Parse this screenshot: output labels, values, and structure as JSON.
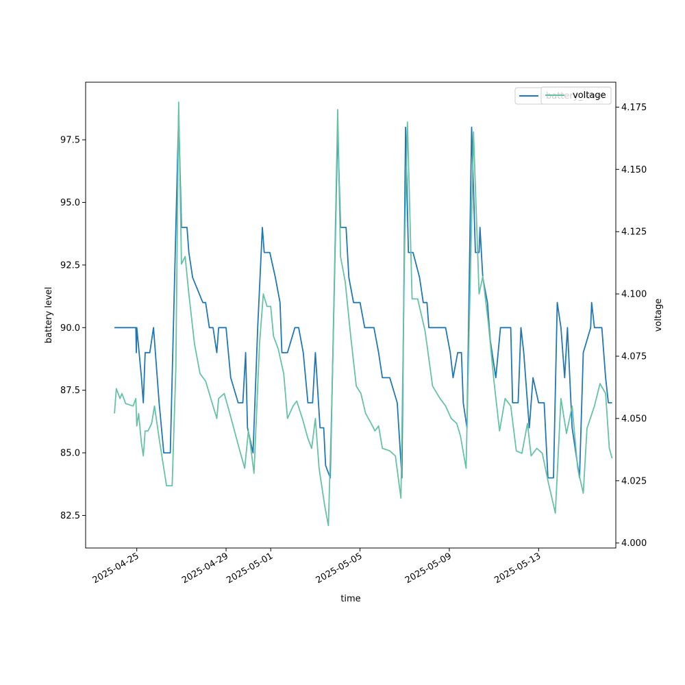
{
  "chart_data": {
    "type": "line",
    "xlabel": "time",
    "ylabel": "battery level",
    "y2label": "voltage",
    "legend_placement": "top-right",
    "grid": false,
    "xlim": [
      "2025-04-22T17:00",
      "2025-05-16T11:00"
    ],
    "ylim": [
      81.2,
      99.8
    ],
    "y2lim": [
      3.998,
      4.185
    ],
    "x_ticks": [
      "2025-04-25",
      "2025-04-29",
      "2025-05-01",
      "2025-05-05",
      "2025-05-09",
      "2025-05-13"
    ],
    "y_ticks": [
      "82.5",
      "85.0",
      "87.5",
      "90.0",
      "92.5",
      "95.0",
      "97.5"
    ],
    "y2_ticks": [
      "4.000",
      "4.025",
      "4.050",
      "4.075",
      "4.100",
      "4.125",
      "4.150",
      "4.175"
    ],
    "series": [
      {
        "name": "battery_level",
        "axis": "left",
        "color": "#1f77b4",
        "points": [
          [
            "2025-04-24T00:00",
            90
          ],
          [
            "2025-04-24T23:00",
            90
          ],
          [
            "2025-04-24T23:30",
            89
          ],
          [
            "2025-04-25T00:00",
            90
          ],
          [
            "2025-04-25T05:00",
            88
          ],
          [
            "2025-04-25T07:00",
            87
          ],
          [
            "2025-04-25T09:00",
            89
          ],
          [
            "2025-04-25T14:00",
            89
          ],
          [
            "2025-04-25T18:00",
            90
          ],
          [
            "2025-04-26T00:00",
            87
          ],
          [
            "2025-04-26T05:00",
            85
          ],
          [
            "2025-04-26T12:00",
            85
          ],
          [
            "2025-04-26T21:00",
            98.5
          ],
          [
            "2025-04-27T00:00",
            94
          ],
          [
            "2025-04-27T06:00",
            94
          ],
          [
            "2025-04-27T08:00",
            93
          ],
          [
            "2025-04-27T12:00",
            92
          ],
          [
            "2025-04-27T23:00",
            91
          ],
          [
            "2025-04-28T02:00",
            91
          ],
          [
            "2025-04-28T06:00",
            90
          ],
          [
            "2025-04-28T10:00",
            90
          ],
          [
            "2025-04-28T14:00",
            89
          ],
          [
            "2025-04-28T16:00",
            90
          ],
          [
            "2025-04-29T00:00",
            90
          ],
          [
            "2025-04-29T05:00",
            88
          ],
          [
            "2025-04-29T13:00",
            87
          ],
          [
            "2025-04-29T18:00",
            87
          ],
          [
            "2025-04-29T21:00",
            89
          ],
          [
            "2025-04-29T23:00",
            86
          ],
          [
            "2025-04-30T05:00",
            85
          ],
          [
            "2025-04-30T10:00",
            90
          ],
          [
            "2025-04-30T15:00",
            94
          ],
          [
            "2025-04-30T17:00",
            93
          ],
          [
            "2025-04-30T23:00",
            93
          ],
          [
            "2025-05-01T05:00",
            92
          ],
          [
            "2025-05-01T10:00",
            91
          ],
          [
            "2025-05-01T12:00",
            89
          ],
          [
            "2025-05-01T18:00",
            89
          ],
          [
            "2025-05-02T02:00",
            90
          ],
          [
            "2025-05-02T06:00",
            90
          ],
          [
            "2025-05-02T11:00",
            89
          ],
          [
            "2025-05-02T16:00",
            87
          ],
          [
            "2025-05-02T21:00",
            87
          ],
          [
            "2025-05-03T00:00",
            89
          ],
          [
            "2025-05-03T05:00",
            86
          ],
          [
            "2025-05-03T09:00",
            86
          ],
          [
            "2025-05-03T11:00",
            84.5
          ],
          [
            "2025-05-03T16:00",
            84
          ],
          [
            "2025-05-04T00:00",
            98
          ],
          [
            "2025-05-04T03:00",
            94
          ],
          [
            "2025-05-04T09:00",
            94
          ],
          [
            "2025-05-04T12:00",
            92
          ],
          [
            "2025-05-04T17:00",
            91
          ],
          [
            "2025-05-05T00:00",
            91
          ],
          [
            "2025-05-05T05:00",
            90
          ],
          [
            "2025-05-05T15:00",
            90
          ],
          [
            "2025-05-05T20:00",
            89
          ],
          [
            "2025-05-06T00:00",
            88
          ],
          [
            "2025-05-06T08:00",
            88
          ],
          [
            "2025-05-06T16:00",
            87
          ],
          [
            "2025-05-06T21:00",
            84
          ],
          [
            "2025-05-07T01:00",
            98
          ],
          [
            "2025-05-07T04:00",
            93
          ],
          [
            "2025-05-07T09:00",
            93
          ],
          [
            "2025-05-07T16:00",
            92
          ],
          [
            "2025-05-07T20:00",
            91
          ],
          [
            "2025-05-08T00:00",
            91
          ],
          [
            "2025-05-08T02:00",
            90
          ],
          [
            "2025-05-08T08:00",
            90
          ],
          [
            "2025-05-08T14:00",
            90
          ],
          [
            "2025-05-08T20:00",
            90
          ],
          [
            "2025-05-09T01:00",
            89
          ],
          [
            "2025-05-09T04:00",
            88
          ],
          [
            "2025-05-09T09:00",
            89
          ],
          [
            "2025-05-09T13:00",
            89
          ],
          [
            "2025-05-09T15:00",
            87
          ],
          [
            "2025-05-09T19:00",
            86
          ],
          [
            "2025-05-10T00:00",
            98
          ],
          [
            "2025-05-10T04:00",
            93
          ],
          [
            "2025-05-10T08:00",
            93
          ],
          [
            "2025-05-10T09:00",
            94
          ],
          [
            "2025-05-10T12:00",
            92
          ],
          [
            "2025-05-10T17:00",
            91
          ],
          [
            "2025-05-10T20:00",
            89.5
          ],
          [
            "2025-05-11T02:00",
            88
          ],
          [
            "2025-05-11T07:00",
            90
          ],
          [
            "2025-05-11T18:00",
            90
          ],
          [
            "2025-05-11T20:00",
            87
          ],
          [
            "2025-05-12T02:00",
            87
          ],
          [
            "2025-05-12T05:00",
            90
          ],
          [
            "2025-05-12T08:00",
            89
          ],
          [
            "2025-05-12T10:00",
            88
          ],
          [
            "2025-05-12T14:00",
            86
          ],
          [
            "2025-05-12T18:00",
            88
          ],
          [
            "2025-05-13T00:00",
            87
          ],
          [
            "2025-05-13T06:00",
            87
          ],
          [
            "2025-05-13T10:00",
            84
          ],
          [
            "2025-05-13T16:00",
            84
          ],
          [
            "2025-05-13T20:00",
            91
          ],
          [
            "2025-05-14T00:00",
            90
          ],
          [
            "2025-05-14T04:00",
            88
          ],
          [
            "2025-05-14T07:00",
            90
          ],
          [
            "2025-05-14T12:00",
            86
          ],
          [
            "2025-05-14T16:00",
            85
          ],
          [
            "2025-05-14T20:00",
            84
          ],
          [
            "2025-05-15T00:00",
            89
          ],
          [
            "2025-05-15T08:00",
            90
          ],
          [
            "2025-05-15T09:00",
            91
          ],
          [
            "2025-05-15T12:00",
            90
          ],
          [
            "2025-05-15T20:00",
            90
          ],
          [
            "2025-05-16T00:00",
            88
          ],
          [
            "2025-05-16T03:00",
            87
          ],
          [
            "2025-05-16T07:00",
            87
          ]
        ]
      },
      {
        "name": "voltage",
        "axis": "right",
        "color": "#66c2a5",
        "points": [
          [
            "2025-04-24T00:00",
            4.052
          ],
          [
            "2025-04-24T02:00",
            4.062
          ],
          [
            "2025-04-24T04:00",
            4.06
          ],
          [
            "2025-04-24T06:00",
            4.058
          ],
          [
            "2025-04-24T08:00",
            4.06
          ],
          [
            "2025-04-24T12:00",
            4.056
          ],
          [
            "2025-04-24T20:00",
            4.055
          ],
          [
            "2025-04-24T23:00",
            4.058
          ],
          [
            "2025-04-25T00:00",
            4.047
          ],
          [
            "2025-04-25T02:00",
            4.052
          ],
          [
            "2025-04-25T05:00",
            4.04
          ],
          [
            "2025-04-25T07:00",
            4.035
          ],
          [
            "2025-04-25T09:00",
            4.045
          ],
          [
            "2025-04-25T12:00",
            4.045
          ],
          [
            "2025-04-25T16:00",
            4.048
          ],
          [
            "2025-04-25T19:00",
            4.055
          ],
          [
            "2025-04-26T00:00",
            4.042
          ],
          [
            "2025-04-26T05:00",
            4.03
          ],
          [
            "2025-04-26T08:00",
            4.023
          ],
          [
            "2025-04-26T14:00",
            4.023
          ],
          [
            "2025-04-26T18:00",
            4.07
          ],
          [
            "2025-04-26T21:00",
            4.177
          ],
          [
            "2025-04-27T00:00",
            4.112
          ],
          [
            "2025-04-27T04:00",
            4.115
          ],
          [
            "2025-04-27T08:00",
            4.1
          ],
          [
            "2025-04-27T14:00",
            4.08
          ],
          [
            "2025-04-27T20:00",
            4.068
          ],
          [
            "2025-04-28T02:00",
            4.065
          ],
          [
            "2025-04-28T10:00",
            4.055
          ],
          [
            "2025-04-28T14:00",
            4.05
          ],
          [
            "2025-04-28T16:00",
            4.058
          ],
          [
            "2025-04-28T22:00",
            4.06
          ],
          [
            "2025-04-29T04:00",
            4.052
          ],
          [
            "2025-04-29T14:00",
            4.038
          ],
          [
            "2025-04-29T20:00",
            4.03
          ],
          [
            "2025-04-30T00:00",
            4.045
          ],
          [
            "2025-04-30T02:00",
            4.04
          ],
          [
            "2025-04-30T06:00",
            4.028
          ],
          [
            "2025-04-30T12:00",
            4.08
          ],
          [
            "2025-04-30T16:00",
            4.1
          ],
          [
            "2025-04-30T20:00",
            4.095
          ],
          [
            "2025-05-01T00:00",
            4.095
          ],
          [
            "2025-05-01T03:00",
            4.083
          ],
          [
            "2025-05-01T08:00",
            4.078
          ],
          [
            "2025-05-01T14:00",
            4.068
          ],
          [
            "2025-05-01T18:00",
            4.05
          ],
          [
            "2025-05-02T00:00",
            4.055
          ],
          [
            "2025-05-02T04:00",
            4.057
          ],
          [
            "2025-05-02T10:00",
            4.05
          ],
          [
            "2025-05-02T16:00",
            4.042
          ],
          [
            "2025-05-02T20:00",
            4.038
          ],
          [
            "2025-05-03T00:00",
            4.05
          ],
          [
            "2025-05-03T04:00",
            4.03
          ],
          [
            "2025-05-03T10:00",
            4.015
          ],
          [
            "2025-05-03T14:00",
            4.007
          ],
          [
            "2025-05-03T18:00",
            4.06
          ],
          [
            "2025-05-04T00:00",
            4.174
          ],
          [
            "2025-05-04T03:00",
            4.115
          ],
          [
            "2025-05-04T08:00",
            4.105
          ],
          [
            "2025-05-04T14:00",
            4.083
          ],
          [
            "2025-05-04T20:00",
            4.063
          ],
          [
            "2025-05-05T01:00",
            4.06
          ],
          [
            "2025-05-05T06:00",
            4.052
          ],
          [
            "2025-05-05T12:00",
            4.048
          ],
          [
            "2025-05-05T16:00",
            4.045
          ],
          [
            "2025-05-05T20:00",
            4.047
          ],
          [
            "2025-05-06T00:00",
            4.038
          ],
          [
            "2025-05-06T08:00",
            4.037
          ],
          [
            "2025-05-06T14:00",
            4.035
          ],
          [
            "2025-05-06T20:00",
            4.018
          ],
          [
            "2025-05-07T00:00",
            4.12
          ],
          [
            "2025-05-07T03:00",
            4.169
          ],
          [
            "2025-05-07T08:00",
            4.098
          ],
          [
            "2025-05-07T14:00",
            4.098
          ],
          [
            "2025-05-07T22:00",
            4.085
          ],
          [
            "2025-05-08T06:00",
            4.063
          ],
          [
            "2025-05-08T14:00",
            4.058
          ],
          [
            "2025-05-08T20:00",
            4.055
          ],
          [
            "2025-05-09T02:00",
            4.05
          ],
          [
            "2025-05-09T08:00",
            4.048
          ],
          [
            "2025-05-09T12:00",
            4.043
          ],
          [
            "2025-05-09T18:00",
            4.03
          ],
          [
            "2025-05-10T00:00",
            4.13
          ],
          [
            "2025-05-10T02:00",
            4.165
          ],
          [
            "2025-05-10T08:00",
            4.1
          ],
          [
            "2025-05-10T12:00",
            4.107
          ],
          [
            "2025-05-10T18:00",
            4.088
          ],
          [
            "2025-05-11T00:00",
            4.065
          ],
          [
            "2025-05-11T06:00",
            4.045
          ],
          [
            "2025-05-11T12:00",
            4.058
          ],
          [
            "2025-05-11T18:00",
            4.055
          ],
          [
            "2025-05-12T00:00",
            4.037
          ],
          [
            "2025-05-12T06:00",
            4.036
          ],
          [
            "2025-05-12T12:00",
            4.048
          ],
          [
            "2025-05-12T16:00",
            4.035
          ],
          [
            "2025-05-12T22:00",
            4.038
          ],
          [
            "2025-05-13T04:00",
            4.036
          ],
          [
            "2025-05-13T10:00",
            4.025
          ],
          [
            "2025-05-13T18:00",
            4.012
          ],
          [
            "2025-05-14T00:00",
            4.058
          ],
          [
            "2025-05-14T06:00",
            4.044
          ],
          [
            "2025-05-14T12:00",
            4.055
          ],
          [
            "2025-05-14T18:00",
            4.03
          ],
          [
            "2025-05-15T00:00",
            4.02
          ],
          [
            "2025-05-15T04:00",
            4.046
          ],
          [
            "2025-05-15T12:00",
            4.055
          ],
          [
            "2025-05-15T18:00",
            4.064
          ],
          [
            "2025-05-16T00:00",
            4.06
          ],
          [
            "2025-05-16T04:00",
            4.038
          ],
          [
            "2025-05-16T07:00",
            4.034
          ]
        ]
      }
    ]
  }
}
